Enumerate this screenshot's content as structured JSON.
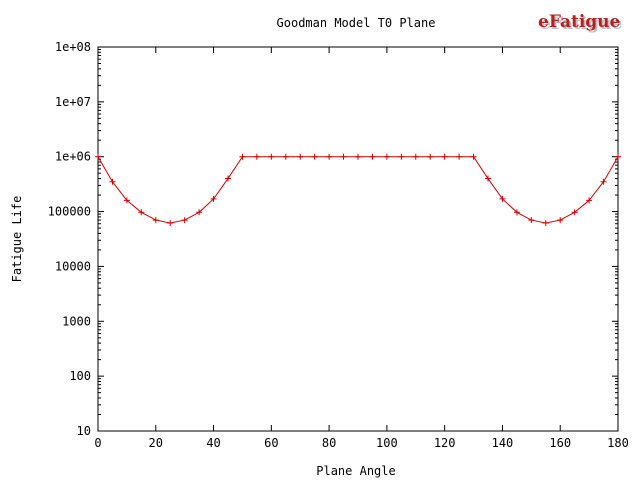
{
  "chart_data": {
    "type": "line",
    "title": "Goodman Model T0 Plane",
    "xlabel": "Plane Angle",
    "ylabel": "Fatigue Life",
    "xlim": [
      0,
      180
    ],
    "ylim": [
      10,
      100000000
    ],
    "yscale": "log",
    "x_ticks": [
      0,
      20,
      40,
      60,
      80,
      100,
      120,
      140,
      160,
      180
    ],
    "x_tick_labels": [
      "0",
      "20",
      "40",
      "60",
      "80",
      "100",
      "120",
      "140",
      "160",
      "180"
    ],
    "y_ticks": [
      10,
      100,
      1000,
      10000,
      100000,
      1000000,
      10000000,
      100000000
    ],
    "y_tick_labels": [
      "10",
      "100",
      "1000",
      "10000",
      "100000",
      "1e+06",
      "1e+07",
      "1e+08"
    ],
    "grid": false,
    "series": [
      {
        "color": "#cc0000",
        "marker": "plus",
        "x": [
          0,
          5,
          10,
          15,
          20,
          25,
          30,
          35,
          40,
          45,
          50,
          55,
          60,
          65,
          70,
          75,
          80,
          85,
          90,
          95,
          100,
          105,
          110,
          115,
          120,
          125,
          130,
          135,
          140,
          145,
          150,
          155,
          160,
          165,
          170,
          175,
          180
        ],
        "y": [
          1000000,
          350000,
          160000,
          97000,
          70000,
          62000,
          70000,
          97000,
          170000,
          400000,
          1000000,
          1000000,
          1000000,
          1000000,
          1000000,
          1000000,
          1000000,
          1000000,
          1000000,
          1000000,
          1000000,
          1000000,
          1000000,
          1000000,
          1000000,
          1000000,
          1000000,
          400000,
          170000,
          97000,
          70000,
          62000,
          70000,
          97000,
          160000,
          350000,
          1000000
        ]
      }
    ]
  },
  "logo": {
    "text": "eFatigue",
    "color": "#b22222"
  }
}
